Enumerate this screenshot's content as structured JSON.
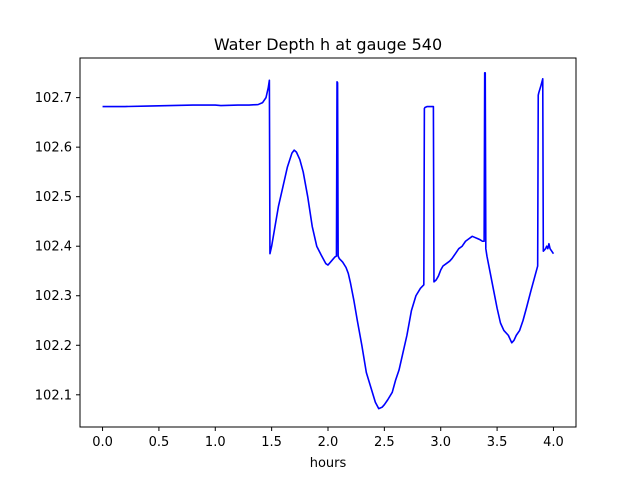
{
  "chart_data": {
    "type": "line",
    "title": "Water Depth h at gauge 540",
    "xlabel": "hours",
    "ylabel": "",
    "xlim": [
      -0.2,
      4.2
    ],
    "ylim": [
      102.035,
      102.78
    ],
    "xticks": [
      0.0,
      0.5,
      1.0,
      1.5,
      2.0,
      2.5,
      3.0,
      3.5,
      4.0
    ],
    "xtick_labels": [
      "0.0",
      "0.5",
      "1.0",
      "1.5",
      "2.0",
      "2.5",
      "3.0",
      "3.5",
      "4.0"
    ],
    "yticks": [
      102.1,
      102.2,
      102.3,
      102.4,
      102.5,
      102.6,
      102.7
    ],
    "ytick_labels": [
      "102.1",
      "102.2",
      "102.3",
      "102.4",
      "102.5",
      "102.6",
      "102.7"
    ],
    "grid": false,
    "series": [
      {
        "color": "#0000ff",
        "x": [
          0.0,
          0.2,
          0.4,
          0.6,
          0.8,
          1.0,
          1.05,
          1.2,
          1.3,
          1.38,
          1.42,
          1.45,
          1.47,
          1.48,
          1.485,
          1.5,
          1.53,
          1.56,
          1.6,
          1.64,
          1.68,
          1.7,
          1.72,
          1.75,
          1.78,
          1.82,
          1.86,
          1.9,
          1.94,
          1.98,
          2.0,
          2.03,
          2.06,
          2.075,
          2.08,
          2.085,
          2.09,
          2.1,
          2.13,
          2.16,
          2.18,
          2.2,
          2.23,
          2.26,
          2.3,
          2.34,
          2.38,
          2.42,
          2.45,
          2.48,
          2.5,
          2.53,
          2.57,
          2.6,
          2.63,
          2.66,
          2.7,
          2.74,
          2.78,
          2.82,
          2.85,
          2.855,
          2.86,
          2.88,
          2.92,
          2.935,
          2.94,
          2.96,
          2.98,
          3.0,
          3.02,
          3.05,
          3.08,
          3.1,
          3.13,
          3.16,
          3.19,
          3.22,
          3.25,
          3.28,
          3.3,
          3.33,
          3.35,
          3.37,
          3.385,
          3.39,
          3.395,
          3.4,
          3.41,
          3.44,
          3.47,
          3.5,
          3.53,
          3.56,
          3.6,
          3.63,
          3.65,
          3.67,
          3.7,
          3.73,
          3.76,
          3.8,
          3.83,
          3.86,
          3.865,
          3.87,
          3.89,
          3.905,
          3.91,
          3.93,
          3.94,
          3.95,
          3.96,
          3.97,
          4.0
        ],
        "y": [
          102.682,
          102.682,
          102.683,
          102.684,
          102.685,
          102.685,
          102.684,
          102.685,
          102.685,
          102.686,
          102.69,
          102.7,
          102.72,
          102.735,
          102.385,
          102.4,
          102.44,
          102.48,
          102.52,
          102.56,
          102.588,
          102.594,
          102.59,
          102.575,
          102.55,
          102.5,
          102.44,
          102.4,
          102.382,
          102.365,
          102.362,
          102.37,
          102.378,
          102.38,
          102.732,
          102.73,
          102.38,
          102.375,
          102.368,
          102.357,
          102.345,
          102.325,
          102.29,
          102.25,
          102.2,
          102.145,
          102.115,
          102.085,
          102.072,
          102.075,
          102.08,
          102.09,
          102.105,
          102.13,
          102.15,
          102.18,
          102.22,
          102.27,
          102.3,
          102.315,
          102.322,
          102.678,
          102.68,
          102.682,
          102.682,
          102.682,
          102.328,
          102.332,
          102.34,
          102.352,
          102.36,
          102.365,
          102.37,
          102.375,
          102.385,
          102.395,
          102.4,
          102.41,
          102.415,
          102.42,
          102.418,
          102.415,
          102.413,
          102.41,
          102.41,
          102.75,
          102.75,
          102.395,
          102.38,
          102.345,
          102.31,
          102.275,
          102.245,
          102.23,
          102.22,
          102.205,
          102.21,
          102.22,
          102.23,
          102.25,
          102.275,
          102.31,
          102.335,
          102.36,
          102.705,
          102.71,
          102.725,
          102.738,
          102.39,
          102.395,
          102.4,
          102.395,
          102.405,
          102.395,
          102.385
        ]
      }
    ]
  }
}
